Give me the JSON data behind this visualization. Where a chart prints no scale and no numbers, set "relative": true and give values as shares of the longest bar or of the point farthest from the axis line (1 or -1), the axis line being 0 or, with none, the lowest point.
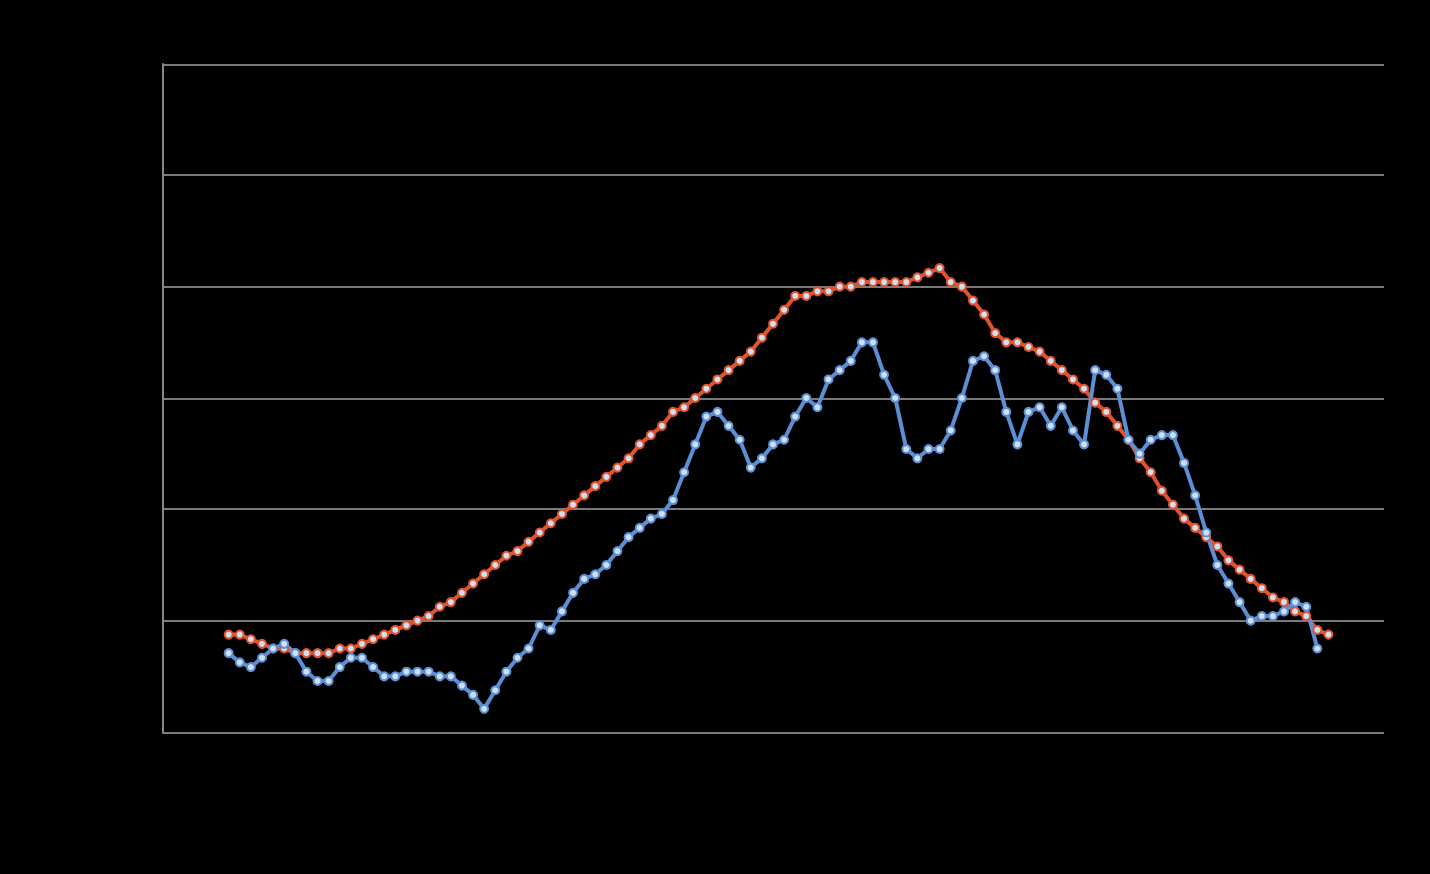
{
  "chart_data": {
    "type": "line",
    "relative": true,
    "grid": "y",
    "marker": "circle",
    "line_style": "solid",
    "categories": [
      null,
      null,
      null,
      null,
      null,
      null,
      null,
      null,
      null,
      null,
      null,
      null,
      null,
      null,
      null,
      null,
      null,
      null,
      null,
      null,
      null,
      null,
      null,
      null,
      null,
      null,
      null,
      null,
      null,
      null,
      null,
      null,
      null,
      null,
      null,
      null,
      null,
      null,
      null,
      null,
      null,
      null,
      null,
      null,
      null,
      null,
      null,
      null,
      null,
      null,
      null,
      null,
      null,
      null,
      null,
      null,
      null,
      null,
      null,
      null,
      null,
      null,
      null,
      null,
      null,
      null,
      null,
      null,
      null,
      null,
      null,
      null,
      null,
      null,
      null,
      null,
      null,
      null,
      null,
      null,
      null,
      null,
      null,
      null,
      null,
      null,
      null,
      null,
      null,
      null,
      null,
      null,
      null,
      null,
      null,
      null,
      null,
      null,
      null,
      null,
      null,
      null,
      null,
      null,
      null,
      null,
      null,
      null,
      null,
      null,
      null
    ],
    "series": [
      {
        "color": "#e0542c",
        "values": [
          null,
          null,
          null,
          null,
          null,
          null,
          0.21,
          0.21,
          0.2,
          0.19,
          0.18,
          0.18,
          0.17,
          0.17,
          0.17,
          0.17,
          0.18,
          0.18,
          0.19,
          0.2,
          0.21,
          0.22,
          0.23,
          0.24,
          0.25,
          0.27,
          0.28,
          0.3,
          0.32,
          0.34,
          0.36,
          0.38,
          0.39,
          0.41,
          0.43,
          0.45,
          0.47,
          0.49,
          0.51,
          0.53,
          0.55,
          0.57,
          0.59,
          0.62,
          0.64,
          0.66,
          0.69,
          0.7,
          0.72,
          0.74,
          0.76,
          0.78,
          0.8,
          0.82,
          0.85,
          0.88,
          0.91,
          0.94,
          0.94,
          0.95,
          0.95,
          0.96,
          0.96,
          0.97,
          0.97,
          0.97,
          0.97,
          0.97,
          0.98,
          0.99,
          1,
          0.97,
          0.96,
          0.93,
          0.9,
          0.86,
          0.84,
          0.84,
          0.83,
          0.82,
          0.8,
          0.78,
          0.76,
          0.74,
          0.71,
          0.69,
          0.66,
          0.63,
          0.59,
          0.56,
          0.52,
          0.49,
          0.46,
          0.44,
          0.42,
          0.4,
          0.37,
          0.35,
          0.33,
          0.31,
          0.29,
          0.28,
          0.26,
          0.25,
          0.22,
          0.21,
          null,
          null,
          null,
          null,
          null
        ]
      },
      {
        "color": "#5b8fd6",
        "values": [
          null,
          null,
          null,
          null,
          null,
          null,
          0.17,
          0.15,
          0.14,
          0.16,
          0.18,
          0.19,
          0.17,
          0.13,
          0.11,
          0.11,
          0.14,
          0.16,
          0.16,
          0.14,
          0.12,
          0.12,
          0.13,
          0.13,
          0.13,
          0.12,
          0.12,
          0.1,
          0.08,
          0.05,
          0.09,
          0.13,
          0.16,
          0.18,
          0.23,
          0.22,
          0.26,
          0.3,
          0.33,
          0.34,
          0.36,
          0.39,
          0.42,
          0.44,
          0.46,
          0.47,
          0.5,
          0.56,
          0.62,
          0.68,
          0.69,
          0.66,
          0.63,
          0.57,
          0.59,
          0.62,
          0.63,
          0.68,
          0.72,
          0.7,
          0.76,
          0.78,
          0.8,
          0.84,
          0.84,
          0.77,
          0.72,
          0.61,
          0.59,
          0.61,
          0.61,
          0.65,
          0.72,
          0.8,
          0.81,
          0.78,
          0.69,
          0.62,
          0.69,
          0.7,
          0.66,
          0.7,
          0.65,
          0.62,
          0.78,
          0.77,
          0.74,
          0.63,
          0.6,
          0.63,
          0.64,
          0.64,
          0.58,
          0.51,
          0.43,
          0.36,
          0.32,
          0.28,
          0.24,
          0.25,
          0.25,
          0.26,
          0.28,
          0.27,
          0.18,
          null,
          null,
          null,
          null,
          null,
          null
        ]
      }
    ]
  }
}
